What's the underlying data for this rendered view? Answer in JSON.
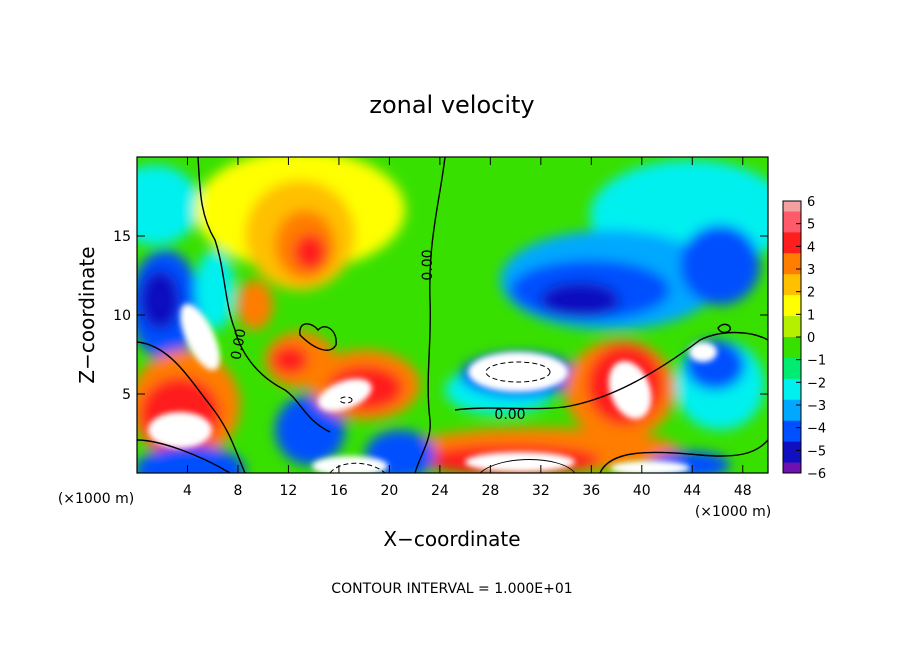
{
  "chart_data": {
    "type": "heatmap",
    "title": "zonal velocity",
    "xlabel": "X−coordinate",
    "ylabel": "Z−coordinate",
    "x_unit_left": "(×1000 m)",
    "x_unit_right": "(×1000 m)",
    "xlim": [
      0,
      50
    ],
    "ylim": [
      0,
      20
    ],
    "xticks": [
      4,
      8,
      12,
      16,
      20,
      24,
      28,
      32,
      36,
      40,
      44,
      48
    ],
    "yticks": [
      5,
      10,
      15
    ],
    "colorbar": {
      "range": [
        -6,
        6
      ],
      "ticks": [
        "6",
        "5",
        "4",
        "3",
        "2",
        "1",
        "0",
        "−1",
        "−2",
        "−3",
        "−4",
        "−5",
        "−6"
      ]
    },
    "contour_label": "0.00",
    "footer": "CONTOUR INTERVAL = 1.000E+01",
    "colors": {
      "v6": "#f4a0a0",
      "v5": "#ff5a6a",
      "v4": "#ff1e1e",
      "v3": "#ff7d00",
      "v2": "#ffc000",
      "v1": "#ffff00",
      "v0p": "#b4f000",
      "v0": "#38e000",
      "vm1": "#00ec70",
      "vm2": "#00f0f0",
      "vm3": "#00a8ff",
      "vm4": "#0050ff",
      "vm5": "#1010c0",
      "vm6": "#7010b0"
    }
  }
}
